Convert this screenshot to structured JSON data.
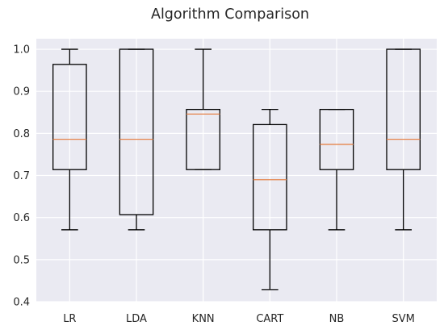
{
  "chart_data": {
    "type": "boxplot",
    "title": "Algorithm Comparison",
    "xlabel": "",
    "ylabel": "",
    "ylim": [
      0.4,
      1.025
    ],
    "yticks": [
      0.4,
      0.5,
      0.6,
      0.7,
      0.8,
      0.9,
      1.0
    ],
    "ytick_labels": [
      "0.4",
      "0.5",
      "0.6",
      "0.7",
      "0.8",
      "0.9",
      "1.0"
    ],
    "grid": true,
    "categories": [
      "LR",
      "LDA",
      "KNN",
      "CART",
      "NB",
      "SVM"
    ],
    "boxes": [
      {
        "whisker_low": 0.571,
        "q1": 0.714,
        "median": 0.786,
        "q3": 0.964,
        "whisker_high": 1.0
      },
      {
        "whisker_low": 0.571,
        "q1": 0.607,
        "median": 0.786,
        "q3": 1.0,
        "whisker_high": 1.0
      },
      {
        "whisker_low": 0.714,
        "q1": 0.714,
        "median": 0.846,
        "q3": 0.857,
        "whisker_high": 1.0
      },
      {
        "whisker_low": 0.429,
        "q1": 0.571,
        "median": 0.69,
        "q3": 0.821,
        "whisker_high": 0.857
      },
      {
        "whisker_low": 0.571,
        "q1": 0.714,
        "median": 0.774,
        "q3": 0.857,
        "whisker_high": 0.857
      },
      {
        "whisker_low": 0.571,
        "q1": 0.714,
        "median": 0.786,
        "q3": 1.0,
        "whisker_high": 1.0
      }
    ],
    "colors": {
      "background": "#eaeaf2",
      "grid": "#ffffff",
      "box": "#000000",
      "median": "#e5834a",
      "text": "#262626"
    }
  }
}
